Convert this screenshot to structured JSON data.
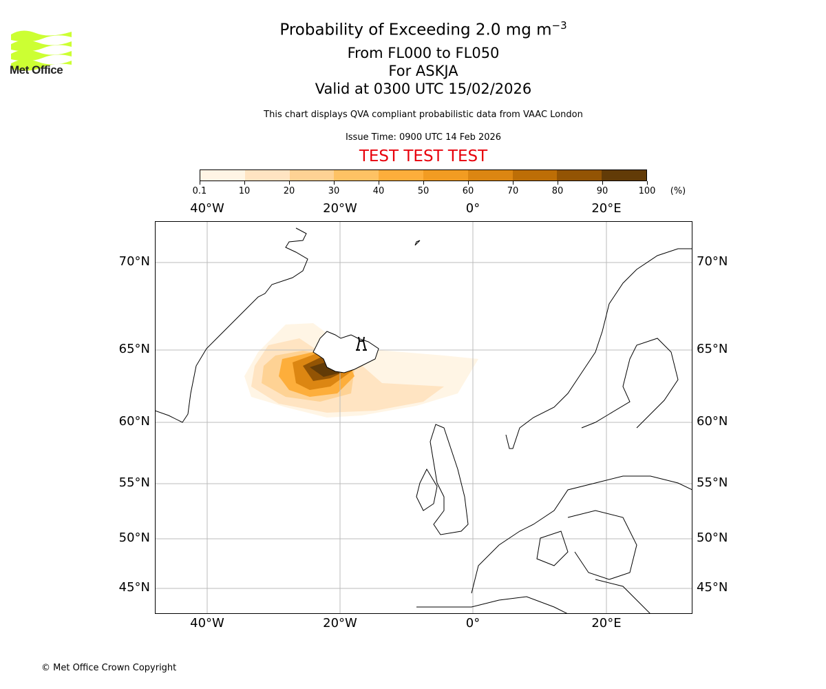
{
  "logo": {
    "text": "Met Office",
    "brand_color": "#ccff33"
  },
  "title": {
    "main": "Probability of Exceeding 2.0 mg m",
    "main_superscript": "−3",
    "levels": "From FL000 to FL050",
    "volcano": "For ASKJA",
    "valid": "Valid at 0300 UTC 15/02/2026"
  },
  "info": {
    "description": "This chart displays QVA compliant probabilistic data from VAAC London",
    "issue_time": "Issue Time: 0900 UTC 14 Feb 2026",
    "test_banner": "TEST TEST TEST"
  },
  "colorbar": {
    "ticks": [
      "0.1",
      "10",
      "20",
      "30",
      "40",
      "50",
      "60",
      "70",
      "80",
      "90",
      "100"
    ],
    "unit": "(%)",
    "colors": [
      "#fff5e5",
      "#ffe4c2",
      "#fed294",
      "#fec264",
      "#fdae3b",
      "#f29c22",
      "#dc8612",
      "#bd6e06",
      "#935404",
      "#623b07"
    ]
  },
  "map": {
    "lon_labels": [
      "40°W",
      "20°W",
      "0°",
      "20°E"
    ],
    "lat_labels": [
      "70°N",
      "65°N",
      "60°N",
      "55°N",
      "50°N",
      "45°N"
    ],
    "volcano_marker": "volcano-icon"
  },
  "footer": {
    "copyright": "© Met Office Crown Copyright"
  }
}
